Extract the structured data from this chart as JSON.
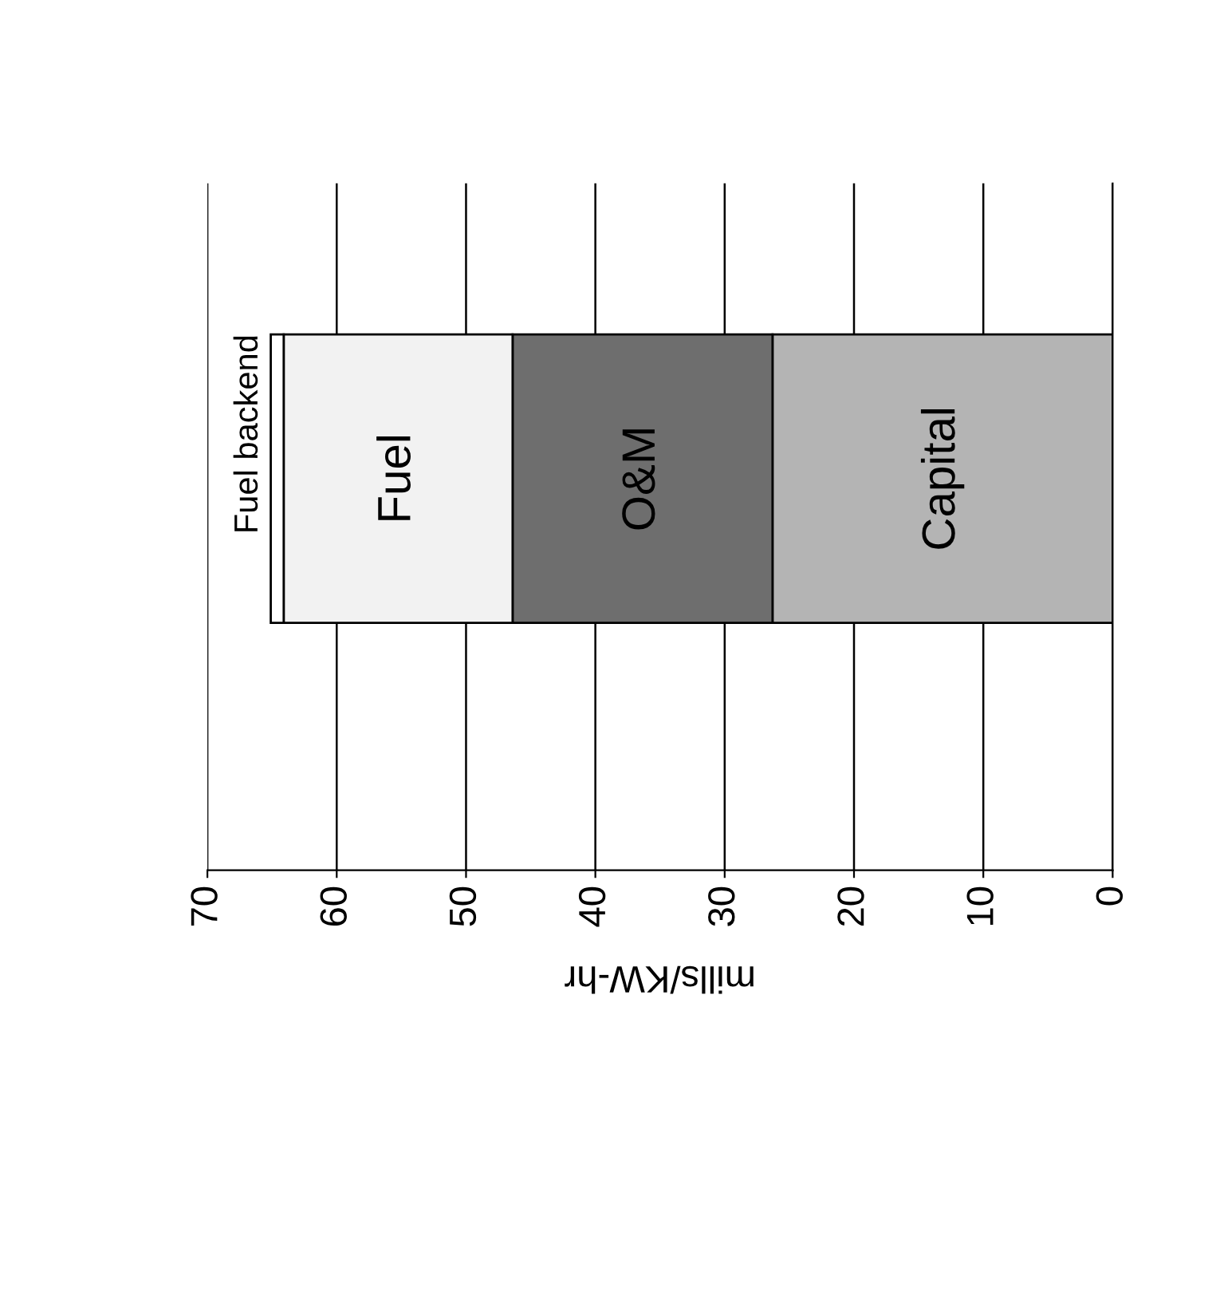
{
  "chart_data": {
    "type": "bar",
    "orientation": "horizontal",
    "stacked": true,
    "categories": [
      null
    ],
    "series": [
      {
        "name": "Capital",
        "color": "#b4b4b4",
        "values": [
          26.3
        ]
      },
      {
        "name": "O&M",
        "color": "#6e6e6e",
        "values": [
          20.1
        ]
      },
      {
        "name": "Fuel",
        "color": "#f2f2f2",
        "values": [
          17.7
        ]
      },
      {
        "name": "Fuel backend",
        "color": "#ffffff",
        "values": [
          1.0
        ]
      }
    ],
    "xlabel": "mills/KW-hr",
    "xlim": [
      70,
      0
    ],
    "xticks": [
      0,
      10,
      20,
      30,
      40,
      50,
      60,
      70
    ],
    "grid": "x",
    "legend": false,
    "tick_labels": "x"
  }
}
